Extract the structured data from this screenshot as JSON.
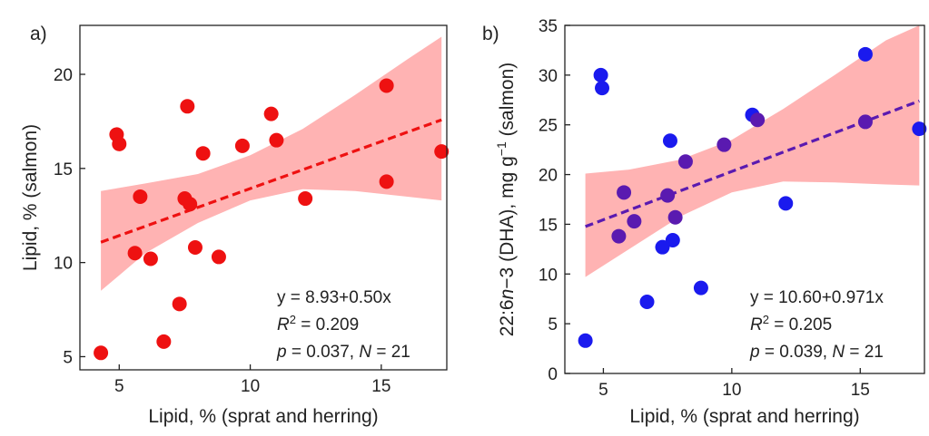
{
  "chart_data": [
    {
      "type": "scatter",
      "panel_label": "a)",
      "xlabel": "Lipid, % (sprat and herring)",
      "ylabel": "Lipid, % (salmon)",
      "xlim": [
        3.5,
        17.5
      ],
      "ylim": [
        4.3,
        22.6
      ],
      "xticks": [
        5,
        10,
        15
      ],
      "yticks": [
        5,
        10,
        15,
        20
      ],
      "colors": {
        "points": "#ee1111",
        "line": "#ee1111",
        "band": "#ffb3b3"
      },
      "points": [
        {
          "x": 4.3,
          "y": 5.2
        },
        {
          "x": 4.9,
          "y": 16.8
        },
        {
          "x": 5.0,
          "y": 16.3
        },
        {
          "x": 5.6,
          "y": 10.5
        },
        {
          "x": 5.8,
          "y": 13.5
        },
        {
          "x": 6.2,
          "y": 10.2
        },
        {
          "x": 6.7,
          "y": 5.8
        },
        {
          "x": 7.3,
          "y": 7.8
        },
        {
          "x": 7.5,
          "y": 13.4
        },
        {
          "x": 7.6,
          "y": 18.3
        },
        {
          "x": 7.7,
          "y": 13.1
        },
        {
          "x": 7.9,
          "y": 10.8
        },
        {
          "x": 8.2,
          "y": 15.8
        },
        {
          "x": 8.8,
          "y": 10.3
        },
        {
          "x": 9.7,
          "y": 16.2
        },
        {
          "x": 10.8,
          "y": 17.9
        },
        {
          "x": 11.0,
          "y": 16.5
        },
        {
          "x": 12.1,
          "y": 13.4
        },
        {
          "x": 15.2,
          "y": 19.4
        },
        {
          "x": 15.2,
          "y": 14.3
        },
        {
          "x": 17.3,
          "y": 15.9
        }
      ],
      "fit": {
        "intercept": 8.93,
        "slope": 0.5,
        "x_range": [
          4.3,
          17.3
        ]
      },
      "band": [
        {
          "x": 4.3,
          "lo": 8.5,
          "hi": 13.8
        },
        {
          "x": 6.0,
          "lo": 10.5,
          "hi": 14.2
        },
        {
          "x": 8.0,
          "lo": 12.1,
          "hi": 14.7
        },
        {
          "x": 10.0,
          "lo": 13.3,
          "hi": 15.7
        },
        {
          "x": 12.0,
          "lo": 13.9,
          "hi": 17.1
        },
        {
          "x": 14.0,
          "lo": 13.8,
          "hi": 18.9
        },
        {
          "x": 16.0,
          "lo": 13.5,
          "hi": 20.8
        },
        {
          "x": 17.3,
          "lo": 13.3,
          "hi": 22.0
        }
      ],
      "annotations": [
        "y = 8.93+0.50x",
        "R",
        "2",
        " = 0.209",
        "p",
        " = 0.037, ",
        "N",
        " = 21"
      ]
    },
    {
      "type": "scatter",
      "panel_label": "b)",
      "xlabel": "Lipid, % (sprat and herring)",
      "ylabel_parts": [
        "22:6",
        "n",
        "−3",
        " (DHA), mg g",
        "−1",
        " (salmon)"
      ],
      "xlim": [
        3.5,
        17.5
      ],
      "ylim": [
        0,
        35
      ],
      "xticks": [
        5,
        10,
        15
      ],
      "yticks": [
        0,
        5,
        10,
        15,
        20,
        25,
        30,
        35
      ],
      "colors": {
        "points": "#1a1aee",
        "points_overlap": "#5a1ab0",
        "line": "#5a1ab0",
        "band": "#ffb3b3"
      },
      "points": [
        {
          "x": 4.3,
          "y": 3.3,
          "c": "blue"
        },
        {
          "x": 4.9,
          "y": 30.0,
          "c": "blue"
        },
        {
          "x": 4.95,
          "y": 28.7,
          "c": "blue"
        },
        {
          "x": 5.6,
          "y": 13.8,
          "c": "purple"
        },
        {
          "x": 5.8,
          "y": 18.2,
          "c": "purple"
        },
        {
          "x": 6.2,
          "y": 15.3,
          "c": "purple"
        },
        {
          "x": 6.7,
          "y": 7.2,
          "c": "blue"
        },
        {
          "x": 7.3,
          "y": 12.7,
          "c": "blue"
        },
        {
          "x": 7.5,
          "y": 17.9,
          "c": "purple"
        },
        {
          "x": 7.6,
          "y": 23.4,
          "c": "blue"
        },
        {
          "x": 7.7,
          "y": 13.4,
          "c": "blue"
        },
        {
          "x": 7.8,
          "y": 15.7,
          "c": "purple"
        },
        {
          "x": 8.2,
          "y": 21.3,
          "c": "purple"
        },
        {
          "x": 8.8,
          "y": 8.6,
          "c": "blue"
        },
        {
          "x": 9.7,
          "y": 23.0,
          "c": "purple"
        },
        {
          "x": 10.8,
          "y": 26.0,
          "c": "blue"
        },
        {
          "x": 11.0,
          "y": 25.5,
          "c": "purple"
        },
        {
          "x": 12.1,
          "y": 17.1,
          "c": "blue"
        },
        {
          "x": 15.2,
          "y": 32.1,
          "c": "blue"
        },
        {
          "x": 15.2,
          "y": 25.3,
          "c": "purple"
        },
        {
          "x": 17.3,
          "y": 24.6,
          "c": "blue"
        }
      ],
      "fit": {
        "intercept": 10.6,
        "slope": 0.971,
        "x_range": [
          4.3,
          17.3
        ]
      },
      "band": [
        {
          "x": 4.3,
          "lo": 9.7,
          "hi": 20.1
        },
        {
          "x": 6.0,
          "lo": 12.5,
          "hi": 20.5
        },
        {
          "x": 8.0,
          "lo": 15.8,
          "hi": 21.5
        },
        {
          "x": 10.0,
          "lo": 18.2,
          "hi": 23.5
        },
        {
          "x": 12.0,
          "lo": 19.3,
          "hi": 26.6
        },
        {
          "x": 14.0,
          "lo": 19.2,
          "hi": 30.0
        },
        {
          "x": 16.0,
          "lo": 19.0,
          "hi": 33.5
        },
        {
          "x": 17.3,
          "lo": 18.9,
          "hi": 35.0
        }
      ],
      "annotations": [
        "y = 10.60+0.971x",
        "R",
        "2",
        " = 0.205",
        "p",
        " = 0.039, ",
        "N",
        " = 21"
      ]
    }
  ]
}
